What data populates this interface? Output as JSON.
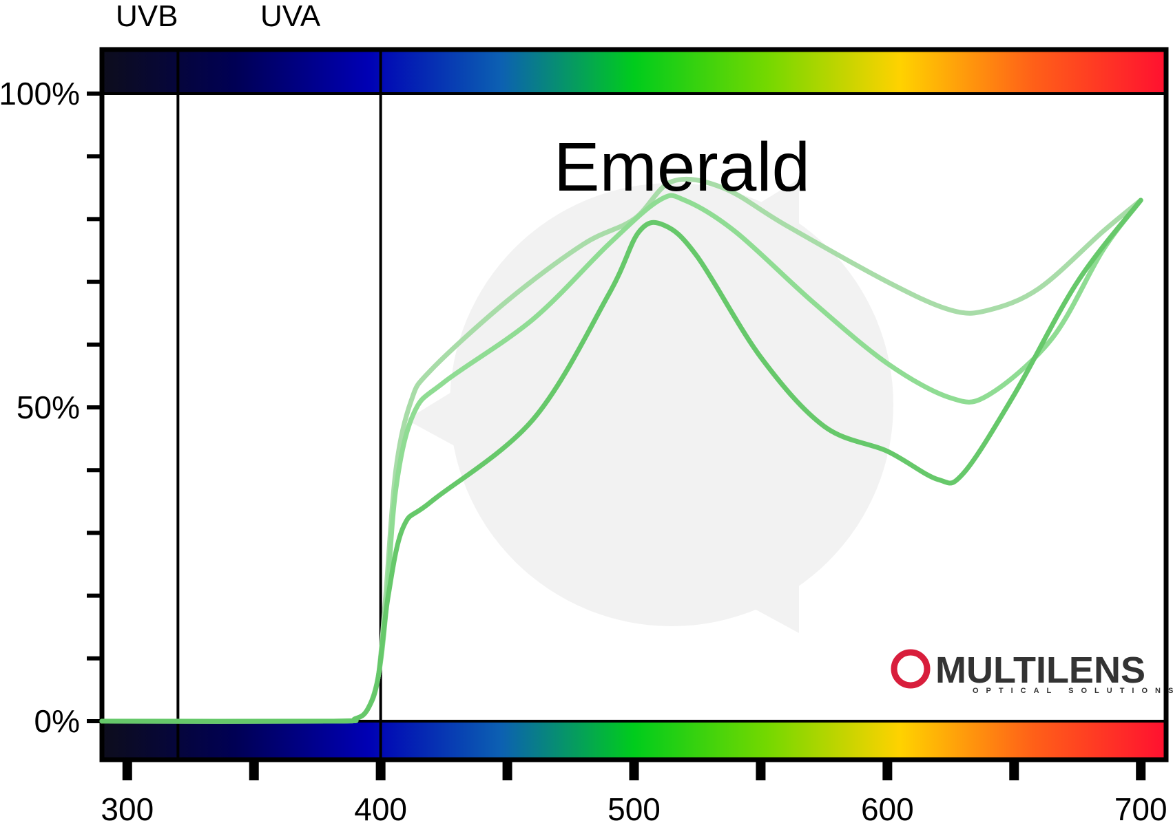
{
  "chart_data": {
    "type": "line",
    "title": "Emerald",
    "xlabel": "",
    "ylabel": "",
    "xlim": [
      290,
      710
    ],
    "ylim": [
      -15,
      115
    ],
    "x_ticks": [
      300,
      400,
      500,
      600,
      700
    ],
    "x_minor_ticks": [
      350,
      450,
      550,
      650
    ],
    "y_ticks": [
      {
        "value": 0,
        "label": "0%"
      },
      {
        "value": 50,
        "label": "50%"
      },
      {
        "value": 100,
        "label": "100%"
      }
    ],
    "y_minor_ticks": [
      10,
      20,
      30,
      40,
      60,
      70,
      80,
      90
    ],
    "regions": [
      {
        "label": "UVB",
        "from": 290,
        "to": 320
      },
      {
        "label": "UVA",
        "from": 320,
        "to": 400
      }
    ],
    "region_dividers": [
      320,
      400
    ],
    "spectrum_colors": [
      "#0d0d1c",
      "#000054",
      "#0000b4",
      "#0c60b2",
      "#00cc1c",
      "#74d800",
      "#ffd200",
      "#ff6018",
      "#ff1030"
    ],
    "series": [
      {
        "color": "#a8dca8",
        "values": [
          [
            290,
            0
          ],
          [
            380,
            0
          ],
          [
            390,
            0.4
          ],
          [
            395,
            2
          ],
          [
            399,
            7
          ],
          [
            402,
            20
          ],
          [
            406,
            40
          ],
          [
            412,
            51
          ],
          [
            420,
            56
          ],
          [
            450,
            67
          ],
          [
            480,
            76
          ],
          [
            500,
            80
          ],
          [
            515,
            86
          ],
          [
            535,
            85
          ],
          [
            560,
            79
          ],
          [
            600,
            70
          ],
          [
            625,
            65.5
          ],
          [
            640,
            65.5
          ],
          [
            660,
            69
          ],
          [
            685,
            78
          ],
          [
            700,
            83
          ]
        ]
      },
      {
        "color": "#8fdc93",
        "values": [
          [
            290,
            0
          ],
          [
            380,
            0
          ],
          [
            390,
            0.4
          ],
          [
            395,
            2
          ],
          [
            399,
            7
          ],
          [
            402,
            17
          ],
          [
            406,
            37
          ],
          [
            413,
            49
          ],
          [
            425,
            54
          ],
          [
            460,
            64
          ],
          [
            490,
            76
          ],
          [
            510,
            83
          ],
          [
            520,
            83
          ],
          [
            540,
            78
          ],
          [
            570,
            67
          ],
          [
            600,
            57
          ],
          [
            625,
            51.5
          ],
          [
            640,
            52
          ],
          [
            665,
            61
          ],
          [
            685,
            75
          ],
          [
            700,
            83
          ]
        ]
      },
      {
        "color": "#66c86a",
        "values": [
          [
            290,
            0
          ],
          [
            380,
            0
          ],
          [
            390,
            0.4
          ],
          [
            395,
            2
          ],
          [
            399,
            7
          ],
          [
            403,
            20
          ],
          [
            409,
            31
          ],
          [
            420,
            35
          ],
          [
            460,
            48
          ],
          [
            490,
            68
          ],
          [
            502,
            78
          ],
          [
            512,
            79
          ],
          [
            525,
            74
          ],
          [
            550,
            58
          ],
          [
            575,
            47
          ],
          [
            600,
            43
          ],
          [
            620,
            38.5
          ],
          [
            630,
            39.5
          ],
          [
            650,
            52
          ],
          [
            675,
            70
          ],
          [
            700,
            83
          ]
        ]
      }
    ]
  },
  "brand": {
    "name": "MULTILENS",
    "tagline": "OPTICAL SOLUTIONS",
    "color": "#d81e3c"
  },
  "watermark": {
    "color": "#f2f2f2"
  }
}
